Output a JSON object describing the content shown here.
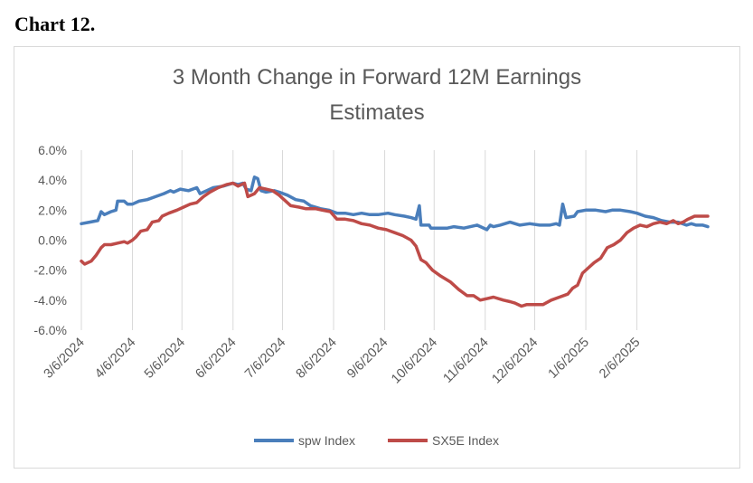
{
  "heading": "Chart 12.",
  "chart_data": {
    "type": "line",
    "title": "3 Month Change in Forward 12M Earnings Estimates",
    "title_lines": [
      "3 Month Change in Forward 12M Earnings",
      "Estimates"
    ],
    "xlabel": "",
    "ylabel": "",
    "ylim": [
      -6,
      6
    ],
    "yticks": [
      6,
      4,
      2,
      0,
      -2,
      -4,
      -6
    ],
    "ytick_labels": [
      "6.0%",
      "4.0%",
      "2.0%",
      "0.0%",
      "-2.0%",
      "-4.0%",
      "-6.0%"
    ],
    "grid": "vertical",
    "legend": "bottom",
    "x_ticks": [
      {
        "label": "3/6/2024",
        "day": 0
      },
      {
        "label": "4/6/2024",
        "day": 31
      },
      {
        "label": "5/6/2024",
        "day": 61
      },
      {
        "label": "6/6/2024",
        "day": 92
      },
      {
        "label": "7/6/2024",
        "day": 122
      },
      {
        "label": "8/6/2024",
        "day": 153
      },
      {
        "label": "9/6/2024",
        "day": 184
      },
      {
        "label": "10/6/2024",
        "day": 214
      },
      {
        "label": "11/6/2024",
        "day": 245
      },
      {
        "label": "12/6/2024",
        "day": 275
      },
      {
        "label": "1/6/2025",
        "day": 306
      },
      {
        "label": "2/6/2025",
        "day": 337
      }
    ],
    "x_max_day": 380,
    "series": [
      {
        "name": "spw Index",
        "color": "#4a7ebb",
        "points": [
          [
            0,
            1.1
          ],
          [
            5,
            1.2
          ],
          [
            10,
            1.3
          ],
          [
            12,
            1.9
          ],
          [
            14,
            1.7
          ],
          [
            18,
            1.9
          ],
          [
            21,
            2.0
          ],
          [
            22,
            2.6
          ],
          [
            26,
            2.6
          ],
          [
            28,
            2.4
          ],
          [
            31,
            2.4
          ],
          [
            35,
            2.6
          ],
          [
            40,
            2.7
          ],
          [
            45,
            2.9
          ],
          [
            50,
            3.1
          ],
          [
            54,
            3.3
          ],
          [
            56,
            3.2
          ],
          [
            60,
            3.4
          ],
          [
            65,
            3.3
          ],
          [
            70,
            3.5
          ],
          [
            72,
            3.1
          ],
          [
            76,
            3.3
          ],
          [
            80,
            3.5
          ],
          [
            86,
            3.6
          ],
          [
            92,
            3.8
          ],
          [
            95,
            3.7
          ],
          [
            98,
            3.8
          ],
          [
            100,
            3.4
          ],
          [
            103,
            3.3
          ],
          [
            105,
            4.2
          ],
          [
            107,
            4.1
          ],
          [
            109,
            3.3
          ],
          [
            112,
            3.2
          ],
          [
            117,
            3.3
          ],
          [
            120,
            3.2
          ],
          [
            125,
            3.0
          ],
          [
            130,
            2.7
          ],
          [
            135,
            2.6
          ],
          [
            139,
            2.3
          ],
          [
            145,
            2.1
          ],
          [
            150,
            2.0
          ],
          [
            155,
            1.8
          ],
          [
            160,
            1.8
          ],
          [
            165,
            1.7
          ],
          [
            170,
            1.8
          ],
          [
            175,
            1.7
          ],
          [
            180,
            1.7
          ],
          [
            186,
            1.8
          ],
          [
            190,
            1.7
          ],
          [
            196,
            1.6
          ],
          [
            200,
            1.5
          ],
          [
            203,
            1.4
          ],
          [
            205,
            2.3
          ],
          [
            206,
            1.0
          ],
          [
            211,
            1.0
          ],
          [
            212,
            0.8
          ],
          [
            216,
            0.8
          ],
          [
            222,
            0.8
          ],
          [
            226,
            0.9
          ],
          [
            232,
            0.8
          ],
          [
            240,
            1.0
          ],
          [
            246,
            0.7
          ],
          [
            248,
            1.0
          ],
          [
            250,
            0.9
          ],
          [
            254,
            1.0
          ],
          [
            260,
            1.2
          ],
          [
            266,
            1.0
          ],
          [
            272,
            1.1
          ],
          [
            278,
            1.0
          ],
          [
            284,
            1.0
          ],
          [
            288,
            1.1
          ],
          [
            290,
            1.0
          ],
          [
            292,
            2.4
          ],
          [
            294,
            1.5
          ],
          [
            299,
            1.6
          ],
          [
            301,
            1.9
          ],
          [
            306,
            2.0
          ],
          [
            312,
            2.0
          ],
          [
            318,
            1.9
          ],
          [
            322,
            2.0
          ],
          [
            327,
            2.0
          ],
          [
            333,
            1.9
          ],
          [
            337,
            1.8
          ],
          [
            342,
            1.6
          ],
          [
            347,
            1.5
          ],
          [
            352,
            1.3
          ],
          [
            357,
            1.2
          ],
          [
            362,
            1.2
          ],
          [
            367,
            1.0
          ],
          [
            370,
            1.1
          ],
          [
            373,
            1.0
          ],
          [
            377,
            1.0
          ],
          [
            380,
            0.9
          ]
        ]
      },
      {
        "name": "SX5E Index",
        "color": "#be4b48",
        "points": [
          [
            0,
            -1.4
          ],
          [
            2,
            -1.6
          ],
          [
            6,
            -1.4
          ],
          [
            9,
            -1.0
          ],
          [
            12,
            -0.5
          ],
          [
            14,
            -0.3
          ],
          [
            18,
            -0.3
          ],
          [
            22,
            -0.2
          ],
          [
            26,
            -0.1
          ],
          [
            28,
            -0.2
          ],
          [
            31,
            0.0
          ],
          [
            33,
            0.2
          ],
          [
            36,
            0.6
          ],
          [
            40,
            0.7
          ],
          [
            43,
            1.2
          ],
          [
            47,
            1.3
          ],
          [
            49,
            1.6
          ],
          [
            53,
            1.8
          ],
          [
            58,
            2.0
          ],
          [
            62,
            2.2
          ],
          [
            66,
            2.4
          ],
          [
            70,
            2.5
          ],
          [
            74,
            2.9
          ],
          [
            78,
            3.2
          ],
          [
            83,
            3.5
          ],
          [
            88,
            3.7
          ],
          [
            92,
            3.8
          ],
          [
            95,
            3.6
          ],
          [
            99,
            3.8
          ],
          [
            101,
            2.9
          ],
          [
            105,
            3.1
          ],
          [
            108,
            3.5
          ],
          [
            112,
            3.4
          ],
          [
            116,
            3.3
          ],
          [
            120,
            3.0
          ],
          [
            124,
            2.6
          ],
          [
            127,
            2.3
          ],
          [
            132,
            2.2
          ],
          [
            136,
            2.1
          ],
          [
            142,
            2.1
          ],
          [
            146,
            2.0
          ],
          [
            151,
            1.9
          ],
          [
            155,
            1.4
          ],
          [
            160,
            1.4
          ],
          [
            165,
            1.3
          ],
          [
            170,
            1.1
          ],
          [
            175,
            1.0
          ],
          [
            180,
            0.8
          ],
          [
            185,
            0.7
          ],
          [
            190,
            0.5
          ],
          [
            195,
            0.3
          ],
          [
            200,
            0.0
          ],
          [
            203,
            -0.4
          ],
          [
            206,
            -1.3
          ],
          [
            209,
            -1.5
          ],
          [
            213,
            -2.0
          ],
          [
            218,
            -2.4
          ],
          [
            224,
            -2.8
          ],
          [
            229,
            -3.3
          ],
          [
            234,
            -3.7
          ],
          [
            238,
            -3.7
          ],
          [
            242,
            -4.0
          ],
          [
            246,
            -3.9
          ],
          [
            250,
            -3.8
          ],
          [
            256,
            -4.0
          ],
          [
            260,
            -4.1
          ],
          [
            263,
            -4.2
          ],
          [
            267,
            -4.4
          ],
          [
            270,
            -4.3
          ],
          [
            275,
            -4.3
          ],
          [
            280,
            -4.3
          ],
          [
            285,
            -4.0
          ],
          [
            290,
            -3.8
          ],
          [
            295,
            -3.6
          ],
          [
            298,
            -3.2
          ],
          [
            301,
            -3.0
          ],
          [
            304,
            -2.2
          ],
          [
            307,
            -1.9
          ],
          [
            311,
            -1.5
          ],
          [
            315,
            -1.2
          ],
          [
            319,
            -0.5
          ],
          [
            323,
            -0.3
          ],
          [
            327,
            0.0
          ],
          [
            331,
            0.5
          ],
          [
            335,
            0.8
          ],
          [
            339,
            1.0
          ],
          [
            343,
            0.9
          ],
          [
            347,
            1.1
          ],
          [
            351,
            1.2
          ],
          [
            355,
            1.1
          ],
          [
            359,
            1.3
          ],
          [
            362,
            1.1
          ],
          [
            365,
            1.2
          ],
          [
            368,
            1.4
          ],
          [
            372,
            1.6
          ],
          [
            376,
            1.6
          ],
          [
            380,
            1.6
          ]
        ]
      }
    ]
  }
}
